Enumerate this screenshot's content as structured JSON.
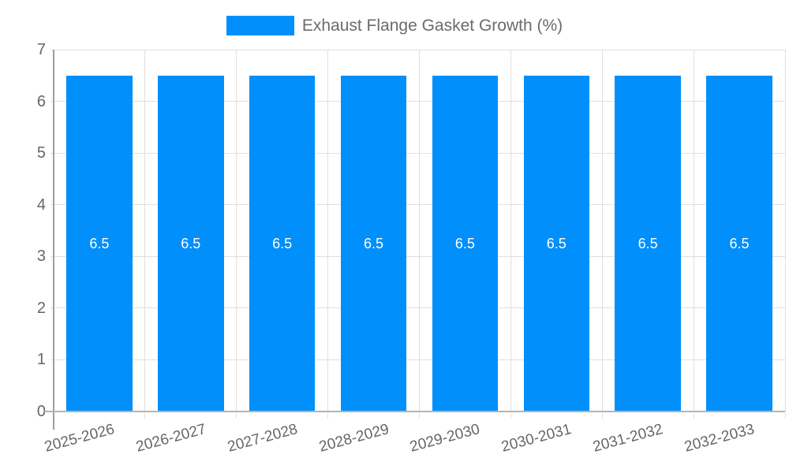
{
  "chart_data": {
    "type": "bar",
    "title": "Exhaust Flange Gasket Growth (%)",
    "legend": {
      "label": "Exhaust Flange Gasket Growth (%)",
      "position": "top",
      "marker_color": "#008ffb"
    },
    "categories": [
      "2025-2026",
      "2026-2027",
      "2027-2028",
      "2028-2029",
      "2029-2030",
      "2030-2031",
      "2031-2032",
      "2032-2033"
    ],
    "series": [
      {
        "name": "Exhaust Flange Gasket Growth (%)",
        "values": [
          6.5,
          6.5,
          6.5,
          6.5,
          6.5,
          6.5,
          6.5,
          6.5
        ],
        "data_labels": [
          "6.5",
          "6.5",
          "6.5",
          "6.5",
          "6.5",
          "6.5",
          "6.5",
          "6.5"
        ],
        "color": "#008ffb"
      }
    ],
    "xlabel": "",
    "ylabel": "",
    "ylim": [
      0,
      7
    ],
    "yticks": [
      0,
      1,
      2,
      3,
      4,
      5,
      6,
      7
    ],
    "grid": true,
    "bar_width_ratio": 0.72,
    "x_label_rotation_deg": -15,
    "colors": {
      "bar": "#008ffb",
      "gridline": "#e0e0e0",
      "axis_line": "#9e9e9e",
      "baseline": "#b3b3b3",
      "tick_label": "#666666",
      "legend_text": "#6b6b6b",
      "data_label": "#ffffff",
      "background": "#ffffff"
    }
  }
}
